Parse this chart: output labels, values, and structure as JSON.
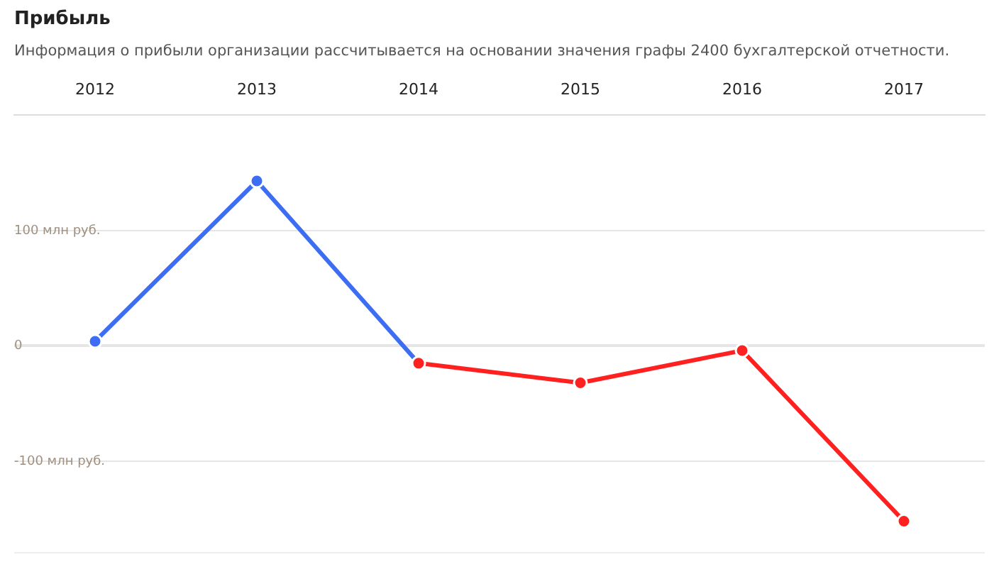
{
  "chart_data": {
    "type": "line",
    "title": "Прибыль",
    "subtitle": "Информация о прибыли организации рассчитывается на основании значения графы 2400 бухгалтерской отчетности.",
    "categories": [
      "2012",
      "2013",
      "2014",
      "2015",
      "2016",
      "2017"
    ],
    "series": [
      {
        "color": "#3d6df2",
        "values": [
          4,
          143,
          -15,
          null,
          null,
          null
        ]
      },
      {
        "color": "#ff2020",
        "values": [
          null,
          null,
          -15,
          -32,
          -4,
          -152
        ]
      }
    ],
    "ylim": [
      -180,
      200
    ],
    "yticks": [
      {
        "value": -100,
        "label": "-100 млн руб."
      },
      0,
      {
        "value": 100,
        "label": "100 млн руб."
      }
    ],
    "grid": "y",
    "legend": false,
    "marker": "circle",
    "line_style": "solid"
  }
}
